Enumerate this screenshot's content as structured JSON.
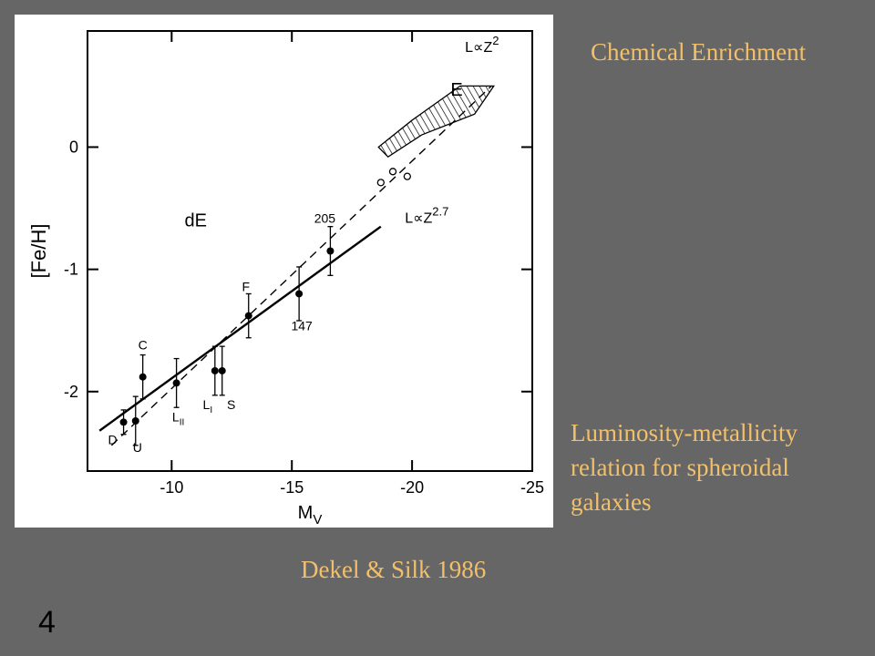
{
  "slide": {
    "title": "Chemical Enrichment",
    "caption": "Luminosity-metallicity relation for spheroidal galaxies",
    "citation": "Dekel & Silk 1986",
    "page_number": "4"
  },
  "chart_data": {
    "type": "scatter",
    "title": "",
    "xlabel": "M",
    "xlabel_sub": "V",
    "ylabel": "[Fe/H]",
    "xlim": [
      -6.5,
      -25
    ],
    "ylim": [
      -2.65,
      0.95
    ],
    "x_ticks": [
      -10,
      -15,
      -20,
      -25
    ],
    "y_ticks": [
      0,
      -1,
      -2
    ],
    "series": [
      {
        "name": "dE",
        "points": [
          {
            "label": "D",
            "x": -8.0,
            "y": -2.25,
            "yerr": 0.1
          },
          {
            "label": "U",
            "x": -8.5,
            "y": -2.24,
            "yerr": 0.2
          },
          {
            "label": "C",
            "x": -8.8,
            "y": -1.88,
            "yerr": 0.18
          },
          {
            "label": "LII",
            "x": -10.2,
            "y": -1.93,
            "yerr": 0.2
          },
          {
            "label": "LI",
            "x": -11.8,
            "y": -1.83,
            "yerr": 0.2
          },
          {
            "label": "S",
            "x": -12.1,
            "y": -1.83,
            "yerr": 0.2
          },
          {
            "label": "F",
            "x": -13.2,
            "y": -1.38,
            "yerr": 0.18
          },
          {
            "label": "147",
            "x": -15.3,
            "y": -1.2,
            "yerr": 0.22
          },
          {
            "label": "205",
            "x": -16.6,
            "y": -0.85,
            "yerr": 0.2
          }
        ]
      },
      {
        "name": "open",
        "points": [
          {
            "x": -18.7,
            "y": -0.29
          },
          {
            "x": -19.2,
            "y": -0.2
          },
          {
            "x": -19.8,
            "y": -0.24
          }
        ]
      }
    ],
    "fits": [
      {
        "label_base": "L∝Z",
        "label_exp": "2",
        "style": "dashed",
        "from": [
          -7.5,
          -2.44
        ],
        "to": [
          -23.3,
          0.5
        ]
      },
      {
        "label_base": "L∝Z",
        "label_exp": "2.7",
        "style": "solid",
        "from": [
          -7.0,
          -2.32
        ],
        "to": [
          -18.7,
          -0.65
        ]
      }
    ],
    "regions": [
      {
        "label": "E",
        "style": "hatched",
        "polygon": [
          [
            -18.6,
            0.0
          ],
          [
            -20.0,
            0.22
          ],
          [
            -22.0,
            0.5
          ],
          [
            -23.4,
            0.5
          ],
          [
            -22.6,
            0.27
          ],
          [
            -20.4,
            0.1
          ],
          [
            -19.0,
            -0.08
          ]
        ]
      }
    ],
    "annotations": [
      {
        "text": "dE",
        "x": -11.0,
        "y": -0.65
      }
    ]
  }
}
